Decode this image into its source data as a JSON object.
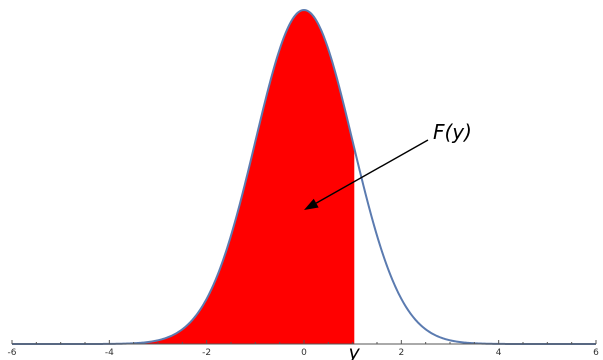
{
  "chart_data": {
    "type": "area",
    "title": "",
    "xlabel": "",
    "ylabel": "",
    "xlim": [
      -6,
      6
    ],
    "ylim": [
      0,
      0.4
    ],
    "x_ticks": [
      -6,
      -4,
      -2,
      0,
      2,
      4,
      6
    ],
    "x_tick_labels": [
      "-6",
      "-4",
      "-2",
      "0",
      "2",
      "4",
      "6"
    ],
    "curve": {
      "function": "standard normal density",
      "mean": 0,
      "sd": 1,
      "color": "#5b7bb0"
    },
    "shaded_region": {
      "from": -6,
      "to": 1.05,
      "color": "#ff0000"
    },
    "marker": {
      "x": 1.05,
      "label": "y"
    },
    "annotation": {
      "text": "F(y)",
      "points_to": {
        "x": 0,
        "y": 0.16
      }
    },
    "grid": false,
    "legend": "none"
  }
}
